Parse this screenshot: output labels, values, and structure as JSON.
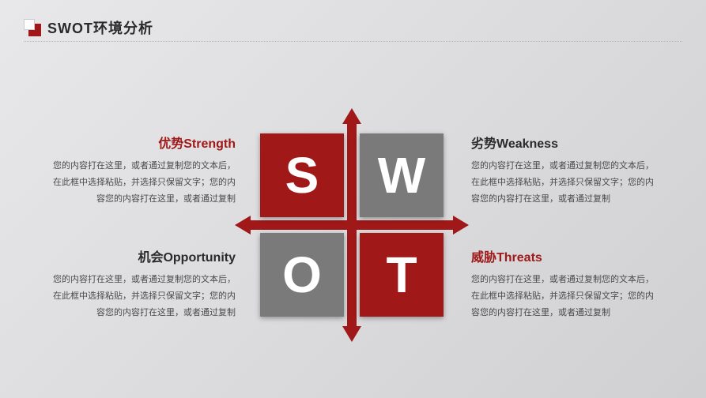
{
  "page": {
    "title": "SWOT环境分析",
    "background": "linear-gradient(135deg,#e8e8ea,#d0d0d2)",
    "accent_color": "#a01818",
    "gray_color": "#7a7a7a",
    "dotted_rule_color": "#b8b8b8"
  },
  "cross": {
    "color": "#a01818",
    "arrow_size": 20,
    "bar_thickness": 12
  },
  "tiles": {
    "size": 106,
    "letter_fontsize": 64,
    "s": {
      "letter": "S",
      "bg": "#a01818",
      "fg": "#ffffff"
    },
    "w": {
      "letter": "W",
      "bg": "#7a7a7a",
      "fg": "#ffffff"
    },
    "o": {
      "letter": "O",
      "bg": "#7a7a7a",
      "fg": "#ffffff"
    },
    "t": {
      "letter": "T",
      "bg": "#a01818",
      "fg": "#ffffff"
    }
  },
  "quadrants": {
    "s": {
      "heading": "优势Strength",
      "heading_color": "#a01818",
      "body": "您的内容打在这里，或者通过复制您的文本后，在此框中选择粘贴，并选择只保留文字；您的内容您的内容打在这里，或者通过复制"
    },
    "w": {
      "heading": "劣势Weakness",
      "heading_color": "#2a2a2a",
      "body": "您的内容打在这里，或者通过复制您的文本后，在此框中选择粘贴，并选择只保留文字；您的内容您的内容打在这里，或者通过复制"
    },
    "o": {
      "heading": "机会Opportunity",
      "heading_color": "#2a2a2a",
      "body": "您的内容打在这里，或者通过复制您的文本后，在此框中选择粘贴，并选择只保留文字；您的内容您的内容打在这里，或者通过复制"
    },
    "t": {
      "heading": "威胁Threats",
      "heading_color": "#a01818",
      "body": "您的内容打在这里，或者通过复制您的文本后，在此框中选择粘贴，并选择只保留文字；您的内容您的内容打在这里，或者通过复制"
    }
  },
  "typography": {
    "title_fontsize": 18,
    "heading_fontsize": 16,
    "body_fontsize": 11,
    "body_color": "#4a4a4a"
  }
}
